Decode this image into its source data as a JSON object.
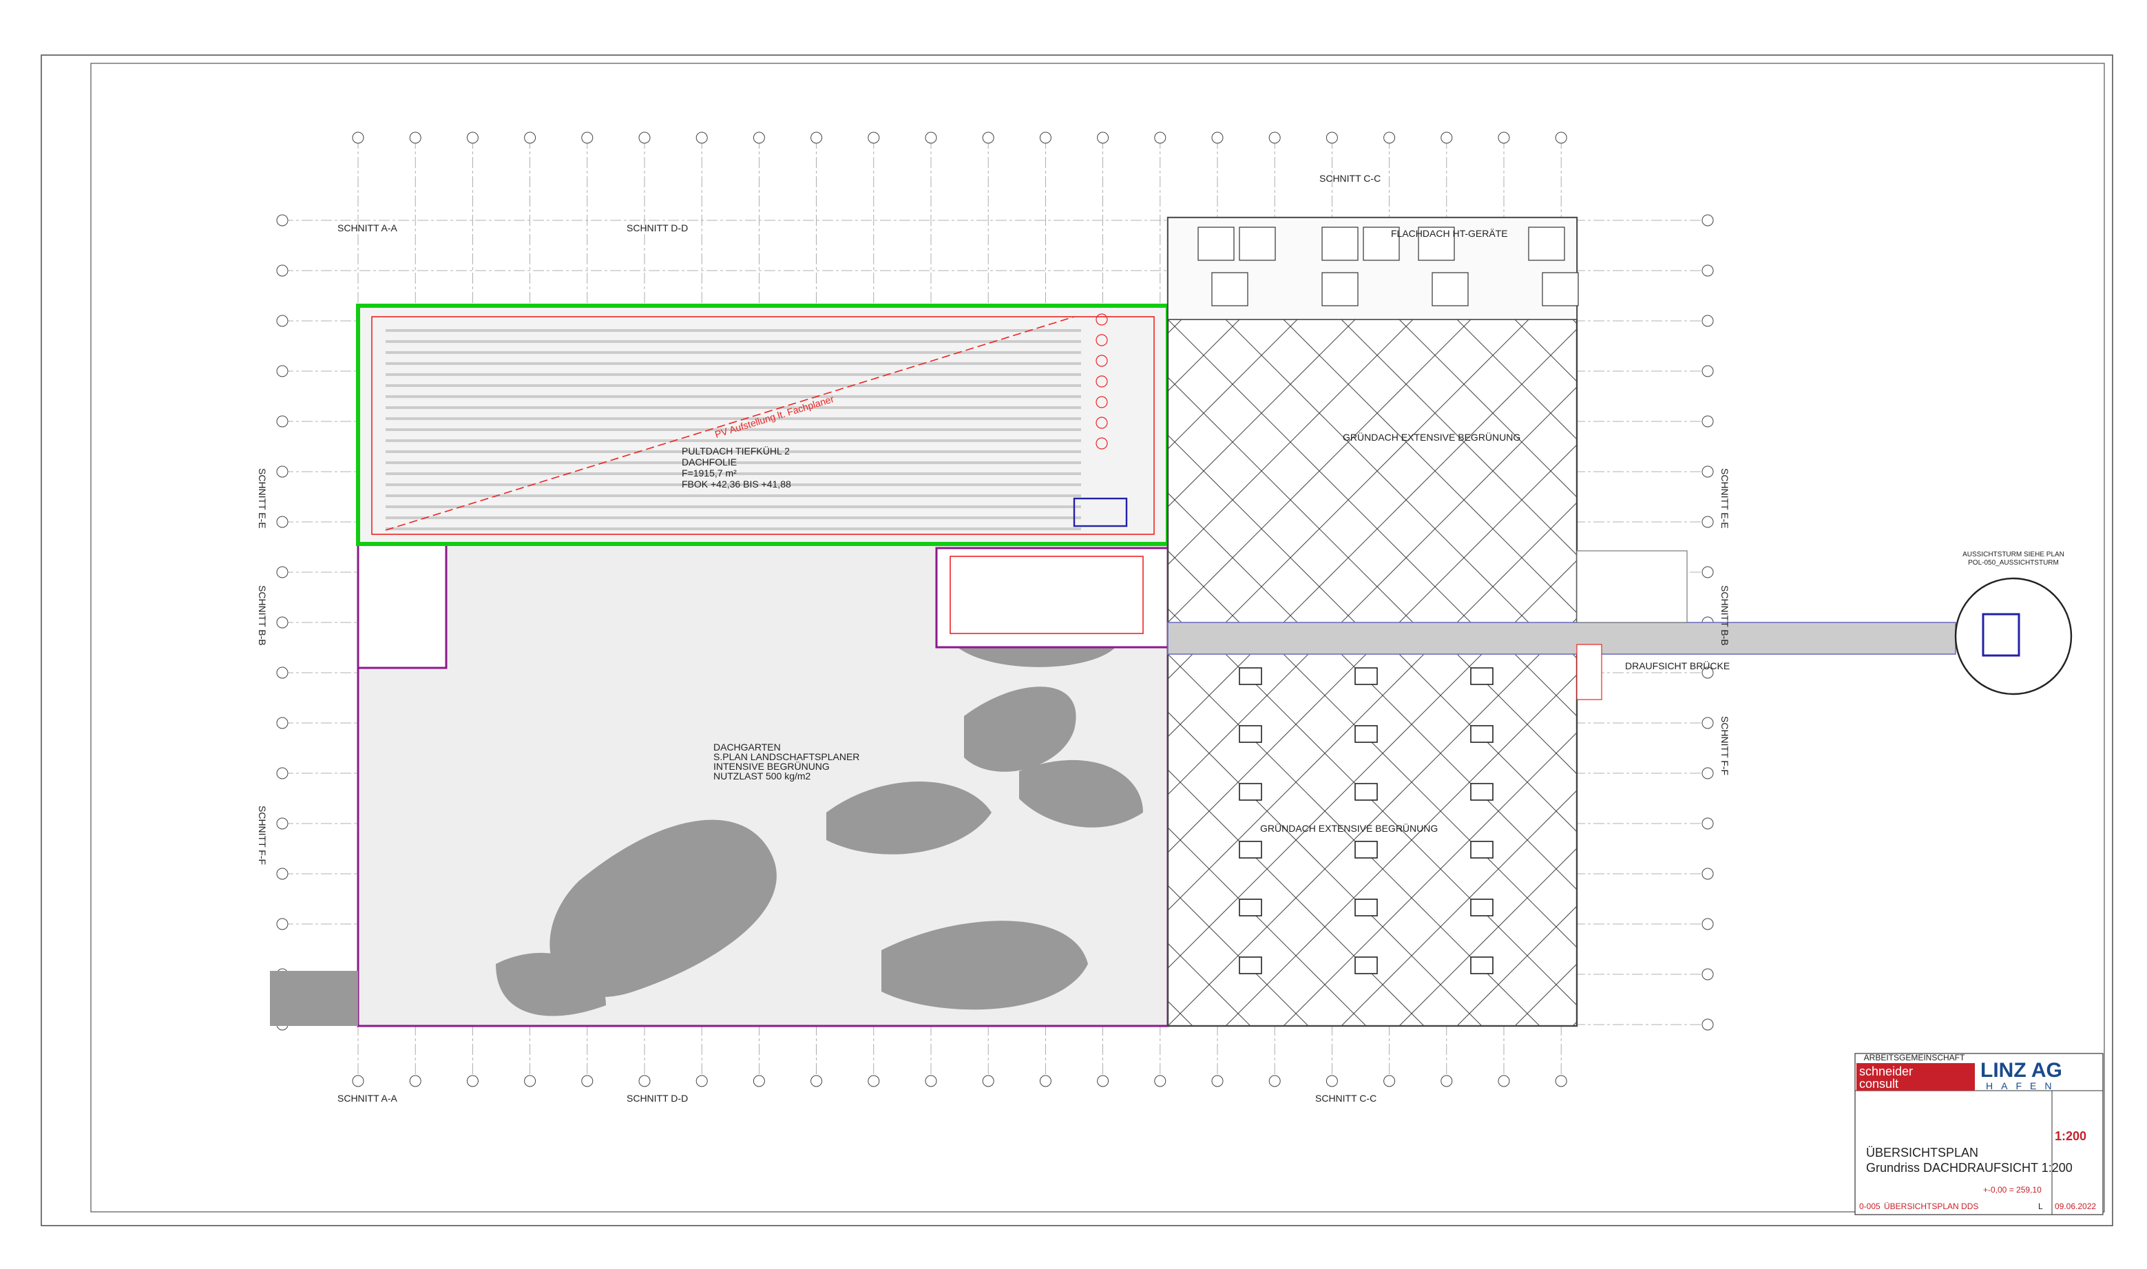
{
  "sections": {
    "a_top": "SCHNITT A-A",
    "d_top": "SCHNITT D-D",
    "c_top": "SCHNITT C-C",
    "a_bottom": "SCHNITT A-A",
    "d_bottom": "SCHNITT D-D",
    "c_bottom": "SCHNITT C-C",
    "e_left": "SCHNITT E-E",
    "b_left": "SCHNITT B-B",
    "f_left": "SCHNITT F-F",
    "e_right": "SCHNITT E-E",
    "b_right": "SCHNITT B-B",
    "f_right": "SCHNITT F-F"
  },
  "pv_roof": {
    "note": "PV Aufstellung lt. Fachplaner",
    "lines": [
      "PULTDACH TIEFKÜHL 2",
      "DACHFOLIE",
      "F=1915,7 m²",
      "FBOK +42,36 BIS +41,88"
    ]
  },
  "ht_roof": "FLACHDACH HT-GERÄTE",
  "green_roof_top": "GRÜNDACH EXTENSIVE BEGRÜNUNG",
  "green_roof_bottom": "GRÜNDACH EXTENSIVE BEGRÜNUNG",
  "garden": {
    "lines": [
      "DACHGARTEN",
      "S.PLAN LANDSCHAFTSPLANER",
      "INTENSIVE BEGRÜNUNG",
      "NUTZLAST 500 kg/m2"
    ]
  },
  "bridge": "DRAUFSICHT BRÜCKE",
  "tower": {
    "lines": [
      "AUSSICHTSTURM SIEHE PLAN",
      "POL-050_AUSSICHTSTURM"
    ]
  },
  "title_block": {
    "consortium": "ARBEITSGEMEINSCHAFT",
    "firm": [
      "schneider",
      "consult"
    ],
    "client": "LINZ AG",
    "client_sub": "HAFEN",
    "scale": "1:200",
    "title": "ÜBERSICHTSPLAN",
    "subtitle": "Grundriss DACHDRAUFSICHT 1:200",
    "datum": "+-0,00 = 259,10",
    "plan_no": "0-005",
    "plan_name": "ÜBERSICHTSPLAN DDS",
    "index": "L",
    "date": "09.06.2022"
  }
}
